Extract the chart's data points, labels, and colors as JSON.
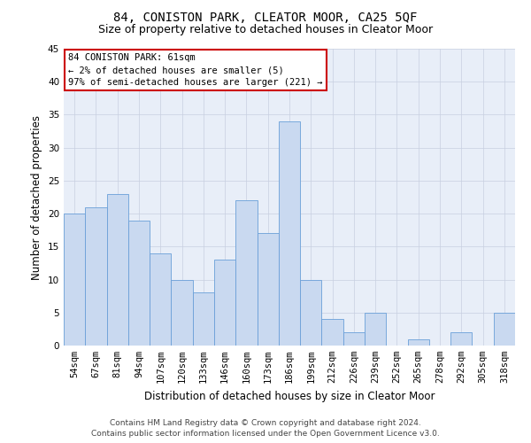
{
  "title": "84, CONISTON PARK, CLEATOR MOOR, CA25 5QF",
  "subtitle": "Size of property relative to detached houses in Cleator Moor",
  "xlabel": "Distribution of detached houses by size in Cleator Moor",
  "ylabel": "Number of detached properties",
  "categories": [
    "54sqm",
    "67sqm",
    "81sqm",
    "94sqm",
    "107sqm",
    "120sqm",
    "133sqm",
    "146sqm",
    "160sqm",
    "173sqm",
    "186sqm",
    "199sqm",
    "212sqm",
    "226sqm",
    "239sqm",
    "252sqm",
    "265sqm",
    "278sqm",
    "292sqm",
    "305sqm",
    "318sqm"
  ],
  "values": [
    20,
    21,
    23,
    19,
    14,
    10,
    8,
    13,
    22,
    17,
    34,
    10,
    4,
    2,
    5,
    0,
    1,
    0,
    2,
    0,
    5
  ],
  "bar_color": "#c9d9f0",
  "bar_edge_color": "#6a9fd8",
  "annotation_box_text": "84 CONISTON PARK: 61sqm\n← 2% of detached houses are smaller (5)\n97% of semi-detached houses are larger (221) →",
  "annotation_box_color": "#ffffff",
  "annotation_box_edge_color": "#cc0000",
  "ylim": [
    0,
    45
  ],
  "yticks": [
    0,
    5,
    10,
    15,
    20,
    25,
    30,
    35,
    40,
    45
  ],
  "footer_line1": "Contains HM Land Registry data © Crown copyright and database right 2024.",
  "footer_line2": "Contains public sector information licensed under the Open Government Licence v3.0.",
  "bg_color": "#ffffff",
  "plot_bg_color": "#e8eef8",
  "grid_color": "#c8cfe0",
  "title_fontsize": 10,
  "subtitle_fontsize": 9,
  "xlabel_fontsize": 8.5,
  "ylabel_fontsize": 8.5,
  "tick_fontsize": 7.5,
  "annotation_fontsize": 7.5,
  "footer_fontsize": 6.5
}
